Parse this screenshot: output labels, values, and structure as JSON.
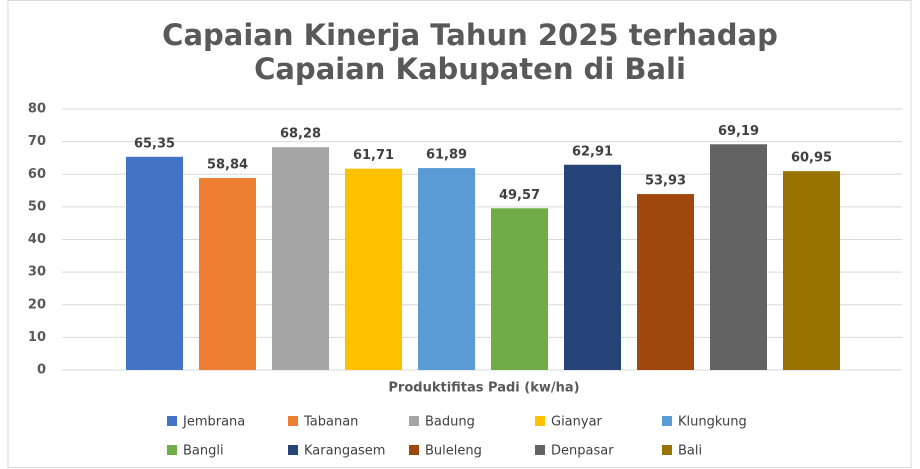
{
  "chart_data": {
    "type": "bar",
    "title": [
      "Capaian Kinerja Tahun 2025 terhadap",
      "Capaian Kabupaten di Bali"
    ],
    "x_label": "Produktifitas Padi (kw/ha)",
    "series": [
      {
        "name": "Jembrana",
        "color": "#4472c4",
        "values": [
          65.35
        ],
        "value_labels": [
          "65,35"
        ]
      },
      {
        "name": "Tabanan",
        "color": "#ed7d31",
        "values": [
          58.84
        ],
        "value_labels": [
          "58,84"
        ]
      },
      {
        "name": "Badung",
        "color": "#a5a5a5",
        "values": [
          68.28
        ],
        "value_labels": [
          "68,28"
        ]
      },
      {
        "name": "Gianyar",
        "color": "#ffc000",
        "values": [
          61.71
        ],
        "value_labels": [
          "61,71"
        ]
      },
      {
        "name": "Klungkung",
        "color": "#5b9bd5",
        "values": [
          61.89
        ],
        "value_labels": [
          "61,89"
        ]
      },
      {
        "name": "Bangli",
        "color": "#70ad47",
        "values": [
          49.57
        ],
        "value_labels": [
          "49,57"
        ]
      },
      {
        "name": "Karangasem",
        "color": "#264478",
        "values": [
          62.91
        ],
        "value_labels": [
          "62,91"
        ]
      },
      {
        "name": "Buleleng",
        "color": "#9e480e",
        "values": [
          53.93
        ],
        "value_labels": [
          "53,93"
        ]
      },
      {
        "name": "Denpasar",
        "color": "#636363",
        "values": [
          69.19
        ],
        "value_labels": [
          "69,19"
        ]
      },
      {
        "name": "Bali",
        "color": "#997300",
        "values": [
          60.95
        ],
        "value_labels": [
          "60,95"
        ]
      }
    ],
    "ylim": [
      0,
      80
    ],
    "yticks": [
      0,
      10,
      20,
      30,
      40,
      50,
      60,
      70,
      80
    ],
    "grid": true,
    "legend": "bottom"
  }
}
